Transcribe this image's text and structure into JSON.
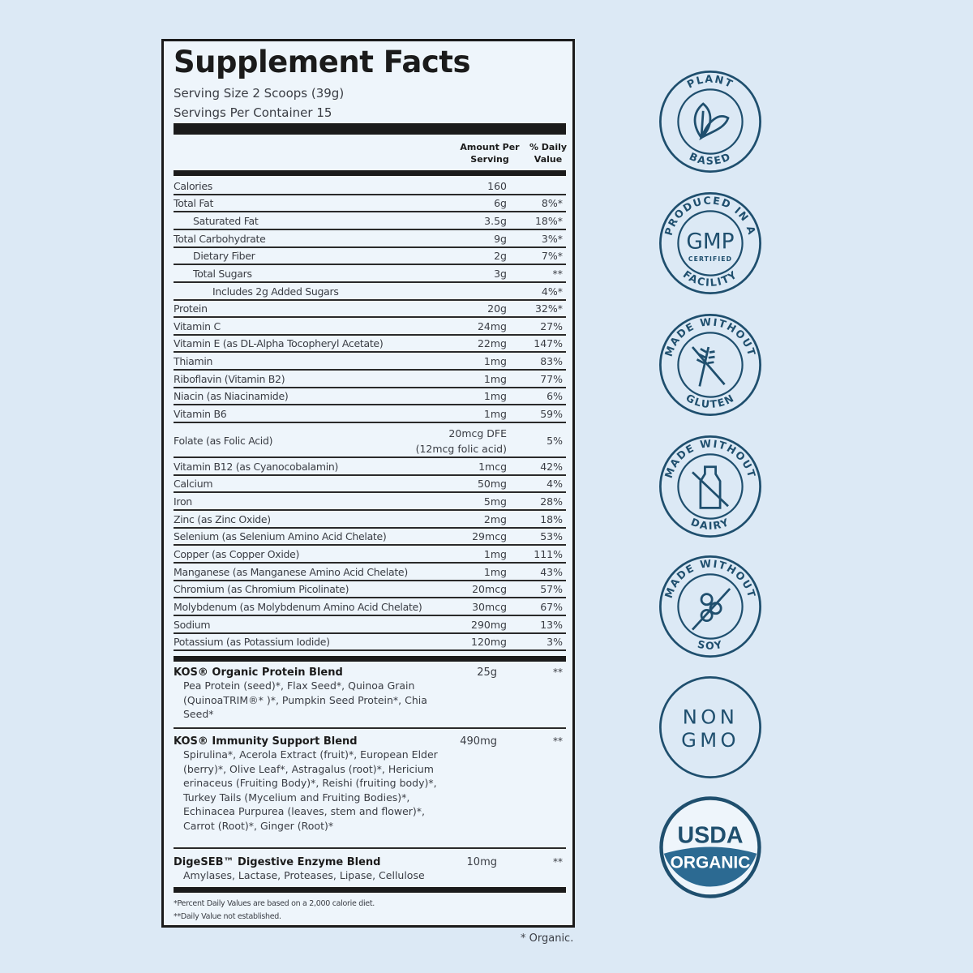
{
  "label": {
    "title": "Supplement Facts",
    "serving_size": "Serving Size 2 Scoops (39g)",
    "servings_per_container": "Servings Per Container 15",
    "col_amount": [
      "Amount Per",
      "Serving"
    ],
    "col_dv": [
      "% Daily",
      "Value"
    ],
    "rows": [
      {
        "name": "Calories",
        "amount": "160",
        "dv": "",
        "indent": 0
      },
      {
        "name": "Total Fat",
        "amount": "6g",
        "dv": "8%*",
        "indent": 0
      },
      {
        "name": "Saturated Fat",
        "amount": "3.5g",
        "dv": "18%*",
        "indent": 1
      },
      {
        "name": "Total Carbohydrate",
        "amount": "9g",
        "dv": "3%*",
        "indent": 0
      },
      {
        "name": "Dietary Fiber",
        "amount": "2g",
        "dv": "7%*",
        "indent": 1
      },
      {
        "name": "Total Sugars",
        "amount": "3g",
        "dv": "**",
        "indent": 1
      },
      {
        "name": "Includes 2g Added Sugars",
        "amount": "",
        "dv": "4%*",
        "indent": 2
      },
      {
        "name": "Protein",
        "amount": "20g",
        "dv": "32%*",
        "indent": 0
      },
      {
        "name": "Vitamin C",
        "amount": "24mg",
        "dv": "27%",
        "indent": 0
      },
      {
        "name": "Vitamin E (as DL-Alpha Tocopheryl Acetate)",
        "amount": "22mg",
        "dv": "147%",
        "indent": 0
      },
      {
        "name": "Thiamin",
        "amount": "1mg",
        "dv": "83%",
        "indent": 0
      },
      {
        "name": "Riboflavin (Vitamin B2)",
        "amount": "1mg",
        "dv": "77%",
        "indent": 0
      },
      {
        "name": "Niacin (as Niacinamide)",
        "amount": "1mg",
        "dv": "6%",
        "indent": 0
      },
      {
        "name": "Vitamin B6",
        "amount": "1mg",
        "dv": "59%",
        "indent": 0
      },
      {
        "name": "Folate (as Folic Acid)",
        "amount": "20mcg DFE",
        "amount2": "(12mcg folic acid)",
        "dv": "5%",
        "indent": 0
      },
      {
        "name": "Vitamin B12 (as Cyanocobalamin)",
        "amount": "1mcg",
        "dv": "42%",
        "indent": 0
      },
      {
        "name": "Calcium",
        "amount": "50mg",
        "dv": "4%",
        "indent": 0
      },
      {
        "name": "Iron",
        "amount": "5mg",
        "dv": "28%",
        "indent": 0
      },
      {
        "name": "Zinc (as Zinc Oxide)",
        "amount": "2mg",
        "dv": "18%",
        "indent": 0
      },
      {
        "name": "Selenium (as Selenium Amino Acid Chelate)",
        "amount": "29mcg",
        "dv": "53%",
        "indent": 0
      },
      {
        "name": "Copper (as Copper Oxide)",
        "amount": "1mg",
        "dv": "111%",
        "indent": 0
      },
      {
        "name": "Manganese (as Manganese Amino Acid Chelate)",
        "amount": "1mg",
        "dv": "43%",
        "indent": 0
      },
      {
        "name": "Chromium (as Chromium Picolinate)",
        "amount": "20mcg",
        "dv": "57%",
        "indent": 0
      },
      {
        "name": "Molybdenum (as Molybdenum Amino Acid Chelate)",
        "amount": "30mcg",
        "dv": "67%",
        "indent": 0
      },
      {
        "name": "Sodium",
        "amount": "290mg",
        "dv": "13%",
        "indent": 0
      },
      {
        "name": "Potassium (as Potassium Iodide)",
        "amount": "120mg",
        "dv": "3%",
        "indent": 0
      }
    ],
    "blends": [
      {
        "title": "KOS® Organic Protein Blend",
        "amount": "25g",
        "dv": "**",
        "ingredients": "Pea Protein (seed)*, Flax Seed*, Quinoa Grain (QuinoaTRIM®* )*, Pumpkin Seed Protein*, Chia Seed*"
      },
      {
        "title": "KOS® Immunity Support Blend",
        "amount": "490mg",
        "dv": "**",
        "ingredients": "Spirulina*, Acerola Extract (fruit)*, European Elder (berry)*, Olive Leaf*, Astragalus (root)*, Hericium erinaceus (Fruiting Body)*, Reishi (fruiting body)*, Turkey Tails (Mycelium and Fruiting Bodies)*, Echinacea Purpurea (leaves, stem and flower)*, Carrot (Root)*, Ginger (Root)*"
      },
      {
        "title": "DigeSEB™ Digestive Enzyme Blend",
        "amount": "10mg",
        "dv": "**",
        "ingredients": "Amylases, Lactase, Proteases, Lipase, Cellulose"
      }
    ],
    "footnote1": "*Percent Daily Values are based on a 2,000 calorie diet.",
    "footnote2": "**Daily Value not established."
  },
  "organic_note": "* Organic.",
  "badges": [
    {
      "icon": "leaf-icon",
      "top": "PLANT",
      "bottom": "BASED"
    },
    {
      "icon": "gmp-icon",
      "top": "PRODUCED IN A",
      "center": "GMP",
      "center2": "CERTIFIED",
      "bottom": "FACILITY"
    },
    {
      "icon": "wheat-crossed-icon",
      "top": "MADE WITHOUT",
      "bottom": "GLUTEN"
    },
    {
      "icon": "milk-bottle-crossed-icon",
      "top": "MADE WITHOUT",
      "bottom": "DAIRY"
    },
    {
      "icon": "soybean-crossed-icon",
      "top": "MADE WITHOUT",
      "bottom": "SOY"
    },
    {
      "icon": "non-gmo-icon",
      "center": "NON",
      "center2": "GMO"
    },
    {
      "icon": "usda-organic-icon",
      "center": "USDA",
      "center2": "ORGANIC"
    }
  ],
  "colors": {
    "background": "#dce9f5",
    "label": "#eef5fb",
    "badge": "#1f4f6e",
    "usda_band": "#2c6a92"
  }
}
